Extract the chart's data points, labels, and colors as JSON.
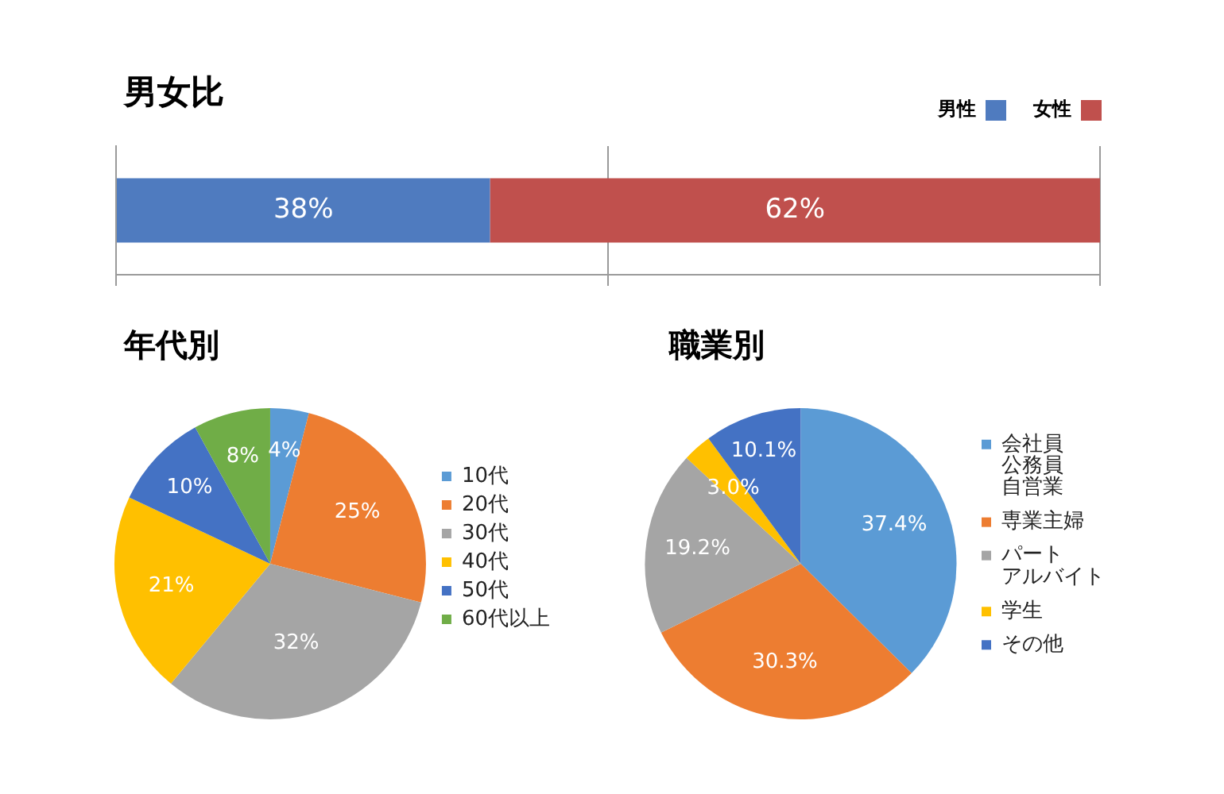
{
  "chart_data": [
    {
      "type": "bar",
      "title": "男女比",
      "orientation": "horizontal",
      "stacked": true,
      "categories": [
        null
      ],
      "series": [
        {
          "name": "男性",
          "color": "#4f7bbf",
          "values": [
            38
          ],
          "value_labels": [
            "38%"
          ]
        },
        {
          "name": "女性",
          "color": "#c0504d",
          "values": [
            62
          ],
          "value_labels": [
            "62%"
          ]
        }
      ],
      "xlim": [
        0,
        100
      ],
      "xticks": [
        {
          "value": 0,
          "label": null
        },
        {
          "value": 50,
          "label": null
        },
        {
          "value": 100,
          "label": null
        }
      ],
      "grid": "x",
      "legend": "top right",
      "tick_labels": false
    },
    {
      "type": "pie",
      "title": "年代別",
      "categories": [
        "10代",
        "20代",
        "30代",
        "40代",
        "50代",
        "60代以上"
      ],
      "values": [
        4,
        25,
        32,
        21,
        10,
        8
      ],
      "colors": [
        "#5b9bd5",
        "#ed7d31",
        "#a5a5a5",
        "#ffc000",
        "#4472c4",
        "#70ad47"
      ],
      "value_labels": [
        "4%",
        "25%",
        "32%",
        "21%",
        "10%",
        "8%"
      ],
      "legend": "right"
    },
    {
      "type": "pie",
      "title": "職業別",
      "categories": [
        "会社員公務員自営業",
        "専業主婦",
        "パートアルバイト",
        "学生",
        "その他"
      ],
      "values": [
        37.4,
        30.3,
        19.2,
        3.0,
        10.1
      ],
      "colors": [
        "#5b9bd5",
        "#ed7d31",
        "#a5a5a5",
        "#ffc000",
        "#4472c4"
      ],
      "value_labels": [
        "37.4%",
        "30.3%",
        "19.2%",
        "3.0%",
        "10.1%"
      ],
      "legend": "right"
    }
  ]
}
